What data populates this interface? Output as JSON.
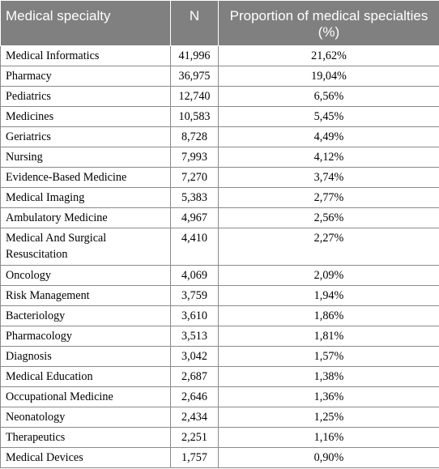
{
  "table": {
    "headers": [
      "Medical specialty",
      "N",
      "Proportion of medical specialties (%)"
    ],
    "rows": [
      [
        "Medical Informatics",
        "41,996",
        "21,62%"
      ],
      [
        "Pharmacy",
        "36,975",
        "19,04%"
      ],
      [
        "Pediatrics",
        "12,740",
        "6,56%"
      ],
      [
        "Medicines",
        "10,583",
        "5,45%"
      ],
      [
        "Geriatrics",
        "8,728",
        "4,49%"
      ],
      [
        "Nursing",
        "7,993",
        "4,12%"
      ],
      [
        "Evidence-Based Medicine",
        "7,270",
        "3,74%"
      ],
      [
        "Medical Imaging",
        "5,383",
        "2,77%"
      ],
      [
        "Ambulatory Medicine",
        "4,967",
        "2,56%"
      ],
      [
        "Medical And Surgical Resuscitation",
        "4,410",
        "2,27%"
      ],
      [
        "Oncology",
        "4,069",
        "2,09%"
      ],
      [
        "Risk Management",
        "3,759",
        "1,94%"
      ],
      [
        "Bacteriology",
        "3,610",
        "1,86%"
      ],
      [
        "Pharmacology",
        "3,513",
        "1,81%"
      ],
      [
        "Diagnosis",
        "3,042",
        "1,57%"
      ],
      [
        "Medical Education",
        "2,687",
        "1,38%"
      ],
      [
        "Occupational Medicine",
        "2,646",
        "1,36%"
      ],
      [
        "Neonatology",
        "2,434",
        "1,25%"
      ],
      [
        "Therapeutics",
        "2,251",
        "1,16%"
      ],
      [
        "Medical Devices",
        "1,757",
        "0,90%"
      ]
    ]
  }
}
